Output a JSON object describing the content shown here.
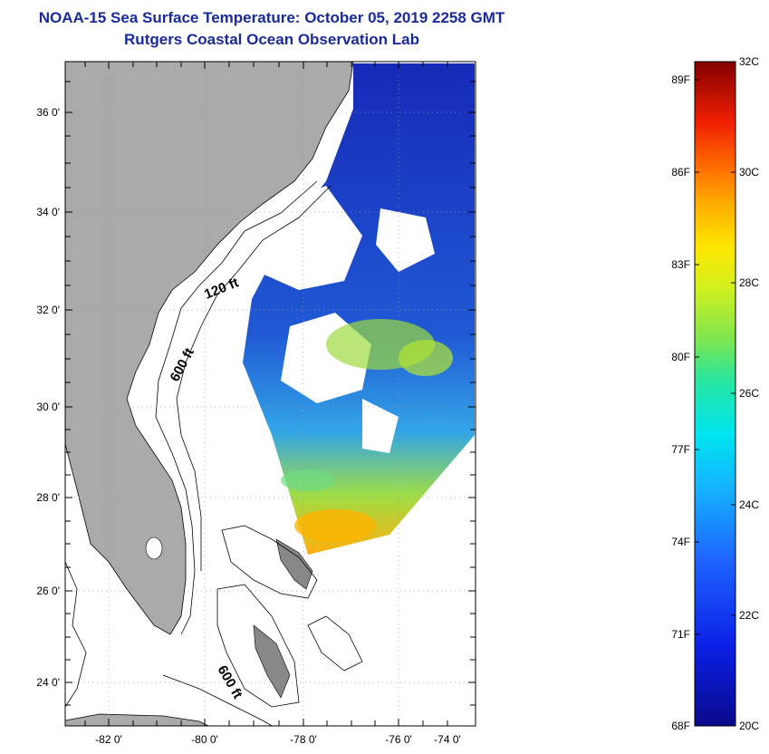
{
  "header": {
    "title": "NOAA-15 Sea Surface Temperature:  October 05, 2019 2258 GMT",
    "subtitle": "Rutgers Coastal Ocean Observation Lab"
  },
  "map": {
    "lat_labels": [
      "36 0'",
      "34 0'",
      "32 0'",
      "30 0'",
      "28 0'",
      "26 0'",
      "24 0'"
    ],
    "lon_labels": [
      "-82 0'",
      "-80 0'",
      "-78 0'",
      "-76 0'",
      "-74 0'"
    ],
    "contour_labels": [
      "120 ft",
      "600 ft",
      "600 ft"
    ],
    "colors": {
      "land": "#aaaaaa",
      "ocean": "#ffffff",
      "coastline": "#000000"
    }
  },
  "colorbar": {
    "f_labels": [
      "89F",
      "86F",
      "83F",
      "80F",
      "77F",
      "74F",
      "71F",
      "68F"
    ],
    "c_labels": [
      "32C",
      "30C",
      "28C",
      "26C",
      "24C",
      "22C",
      "20C"
    ],
    "range_c": [
      20,
      32
    ],
    "range_f": [
      68,
      89.6
    ]
  }
}
